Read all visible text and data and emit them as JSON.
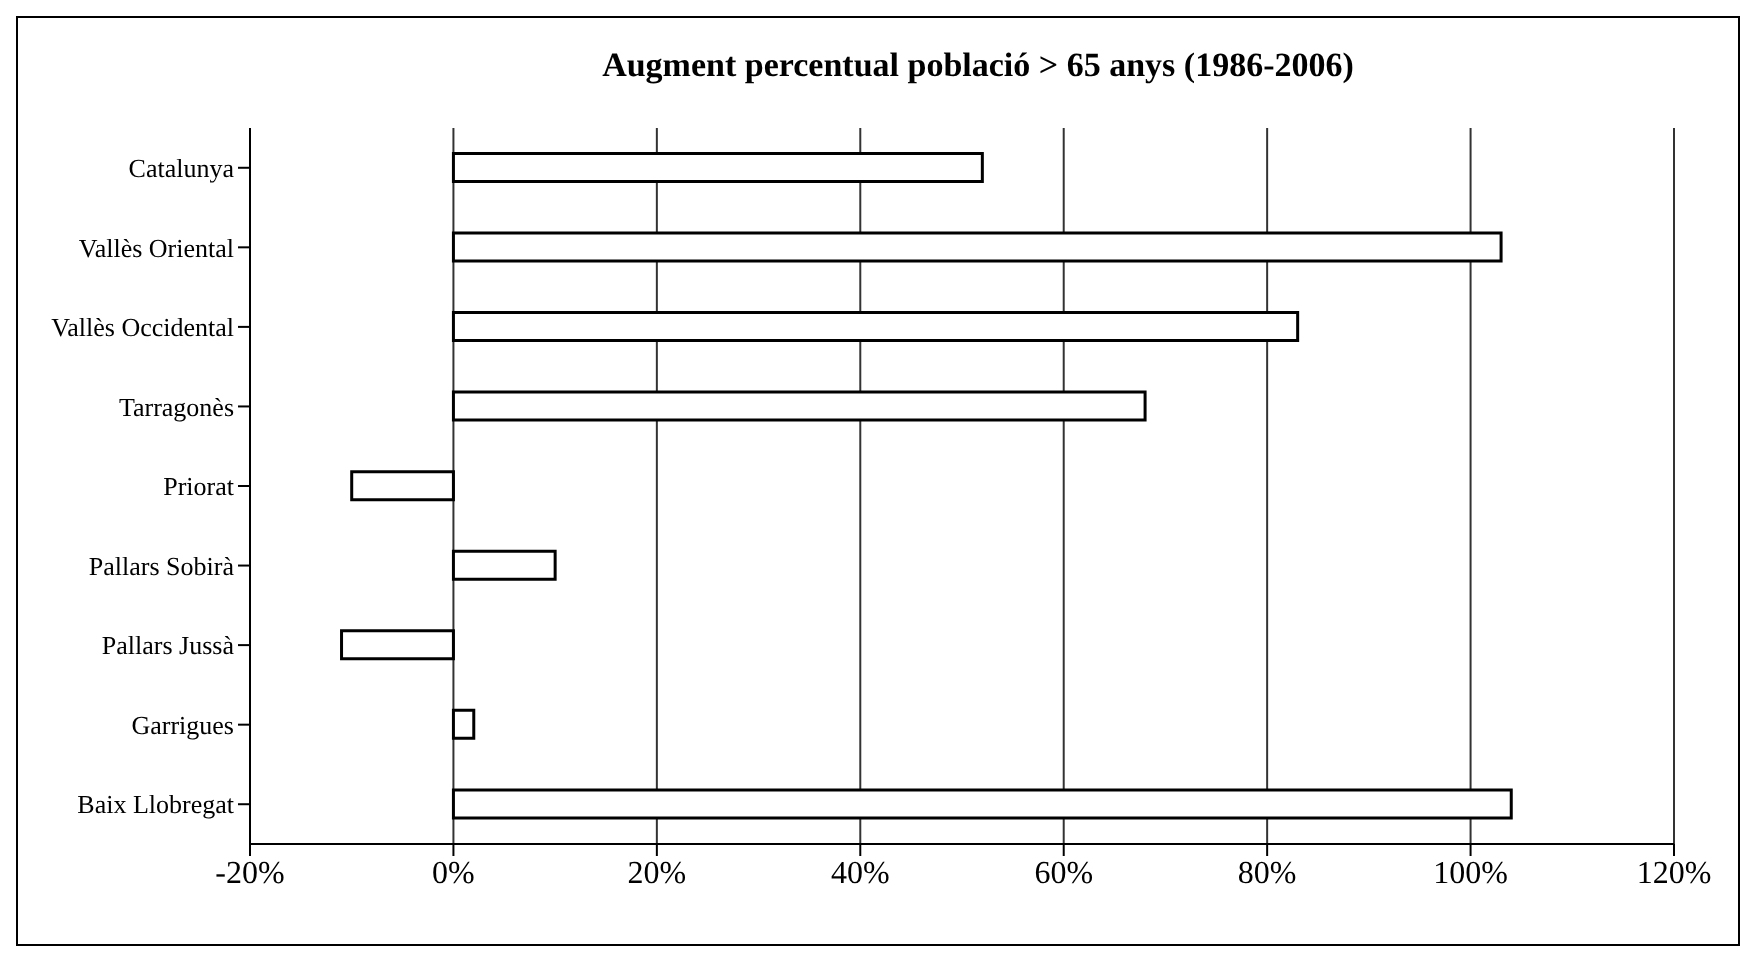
{
  "chart_data": {
    "type": "bar",
    "orientation": "horizontal",
    "title": "Augment percentual població > 65 anys (1986-2006)",
    "categories": [
      "Catalunya",
      "Vallès Oriental",
      "Vallès Occidental",
      "Tarragonès",
      "Priorat",
      "Pallars Sobirà",
      "Pallars Jussà",
      "Garrigues",
      "Baix Llobregat"
    ],
    "values": [
      52,
      103,
      83,
      68,
      -10,
      10,
      -11,
      2,
      104
    ],
    "color": "#ffffff",
    "xlim": [
      -20,
      120
    ],
    "xticks": [
      {
        "value": -20,
        "label": "-20%"
      },
      {
        "value": 0,
        "label": "0%"
      },
      {
        "value": 20,
        "label": "20%"
      },
      {
        "value": 40,
        "label": "40%"
      },
      {
        "value": 60,
        "label": "60%"
      },
      {
        "value": 80,
        "label": "80%"
      },
      {
        "value": 100,
        "label": "100%"
      },
      {
        "value": 120,
        "label": "120%"
      }
    ],
    "grid": "x",
    "legend": false
  }
}
